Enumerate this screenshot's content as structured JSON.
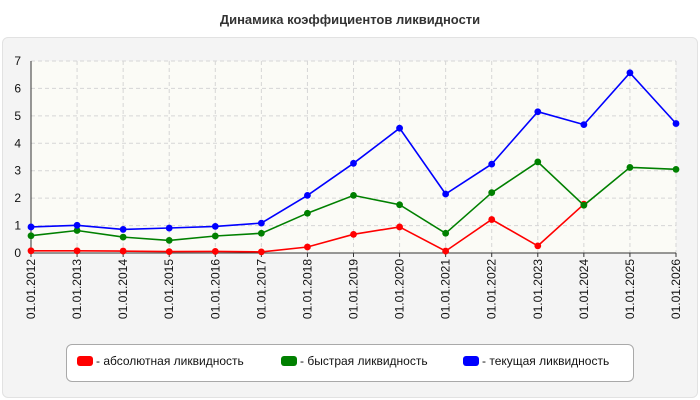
{
  "chart_data": {
    "type": "line",
    "title": "Динамика коэффициентов ликвидности",
    "categories": [
      "01.01.2012",
      "01.01.2013",
      "01.01.2014",
      "01.01.2015",
      "01.01.2016",
      "01.01.2017",
      "01.01.2018",
      "01.01.2019",
      "01.01.2020",
      "01.01.2021",
      "01.01.2022",
      "01.01.2023",
      "01.01.2024",
      "01.01.2025",
      "01.01.2026"
    ],
    "ylim": [
      0,
      7
    ],
    "yticks": [
      "0",
      "1",
      "2",
      "3",
      "4",
      "5",
      "6",
      "7"
    ],
    "grid": true,
    "legend_position": "bottom",
    "series": [
      {
        "name": "- абсолютная ликвидность",
        "color": "#ff0000",
        "values": [
          0.08,
          0.08,
          0.07,
          0.05,
          0.06,
          0.04,
          0.22,
          0.68,
          0.95,
          0.07,
          1.22,
          0.26,
          1.78,
          null,
          null
        ]
      },
      {
        "name": "- быстрая ликвидность",
        "color": "#008000",
        "values": [
          0.63,
          0.82,
          0.58,
          0.46,
          0.62,
          0.72,
          1.45,
          2.1,
          1.76,
          0.72,
          2.2,
          3.32,
          1.74,
          3.12,
          3.05
        ]
      },
      {
        "name": "- текущая ликвидность",
        "color": "#0000ff",
        "values": [
          0.95,
          1.01,
          0.86,
          0.91,
          0.97,
          1.09,
          2.1,
          3.27,
          4.55,
          2.15,
          3.24,
          5.15,
          4.68,
          6.57,
          4.72
        ]
      }
    ]
  }
}
